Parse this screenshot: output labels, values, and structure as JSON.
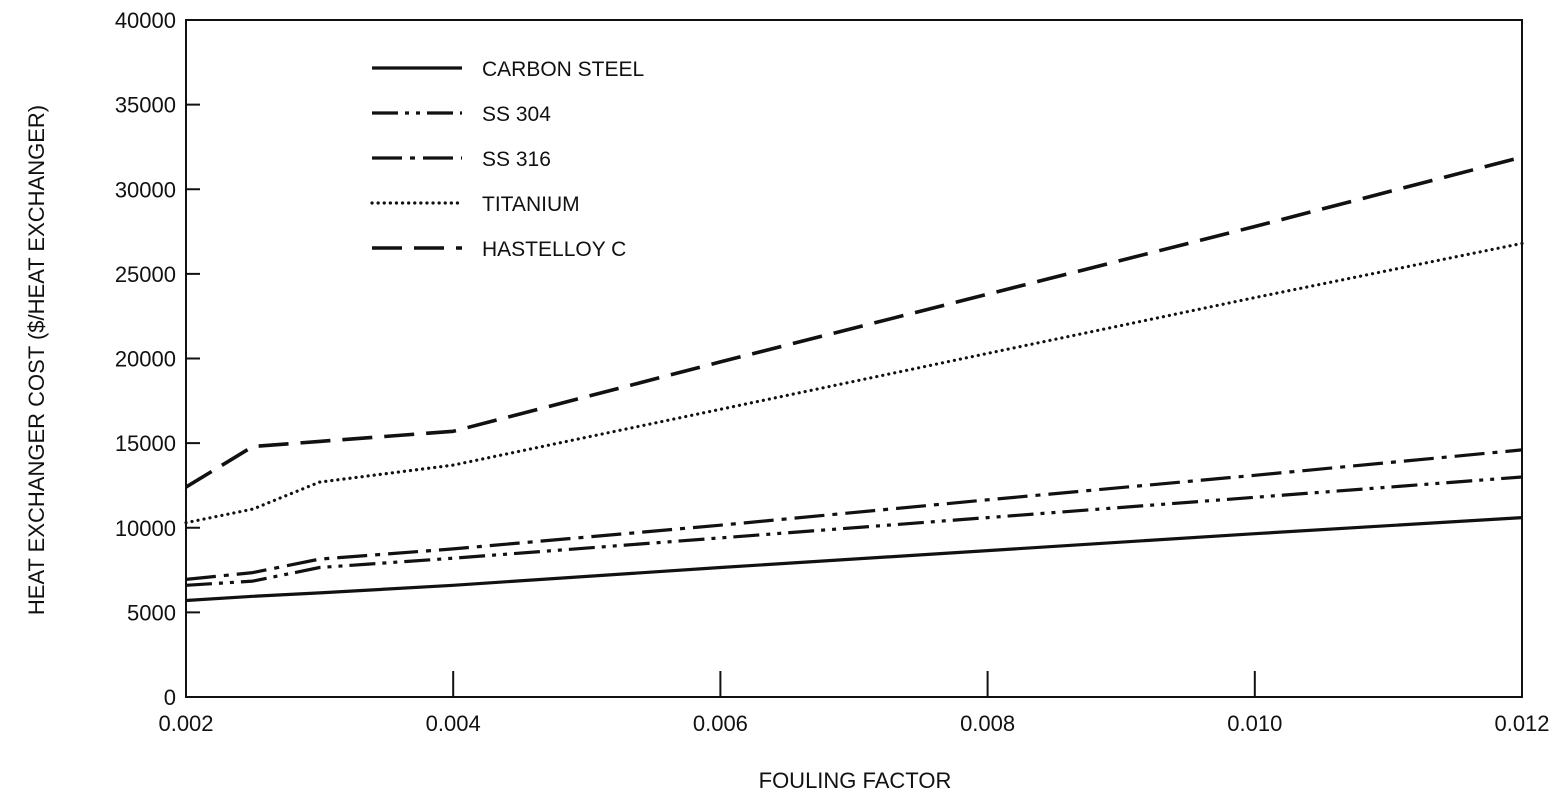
{
  "chart_data": {
    "type": "line",
    "xlabel": "FOULING FACTOR",
    "ylabel": "HEAT EXCHANGER COST ($/HEAT EXCHANGER)",
    "xlim": [
      0.002,
      0.012
    ],
    "ylim": [
      0,
      40000
    ],
    "x_ticks": [
      0.002,
      0.004,
      0.006,
      0.008,
      0.01,
      0.012
    ],
    "x_tick_labels": [
      "0.002",
      "0.004",
      "0.006",
      "0.008",
      "0.010",
      "0.012"
    ],
    "y_ticks": [
      0,
      5000,
      10000,
      15000,
      20000,
      25000,
      30000,
      35000,
      40000
    ],
    "y_tick_labels": [
      "0",
      "5000",
      "10000",
      "15000",
      "20000",
      "25000",
      "30000",
      "35000",
      "40000"
    ],
    "grid": false,
    "legend_position": "top-left",
    "x": [
      0.002,
      0.0025,
      0.003,
      0.004,
      0.006,
      0.008,
      0.01,
      0.012
    ],
    "series": [
      {
        "name": "CARBON STEEL",
        "style": "solid",
        "color": "#111111",
        "values": [
          5700,
          5950,
          6150,
          6600,
          7650,
          8650,
          9650,
          10600
        ]
      },
      {
        "name": "SS 304",
        "style": "dash-dot-dot",
        "color": "#111111",
        "values": [
          6600,
          6850,
          7650,
          8200,
          9400,
          10600,
          11800,
          13000
        ]
      },
      {
        "name": "SS 316",
        "style": "dash-dot",
        "color": "#111111",
        "values": [
          6950,
          7350,
          8150,
          8750,
          10150,
          11650,
          13100,
          14600
        ]
      },
      {
        "name": "TITANIUM",
        "style": "dotted",
        "color": "#111111",
        "values": [
          10300,
          11100,
          12700,
          13700,
          17000,
          20300,
          23600,
          26800
        ]
      },
      {
        "name": "HASTELLOY C",
        "style": "dashed",
        "color": "#111111",
        "values": [
          12400,
          14800,
          15100,
          15700,
          19800,
          23800,
          27800,
          31900
        ]
      }
    ]
  }
}
